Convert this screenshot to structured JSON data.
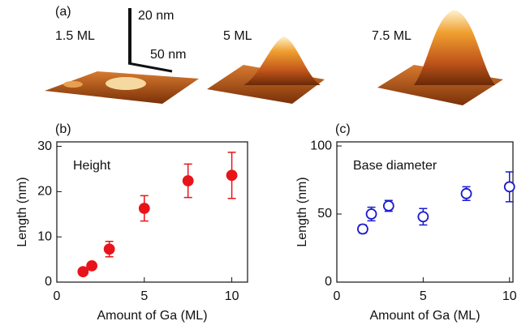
{
  "panel_a": {
    "label": "(a)",
    "scale_z": "20 nm",
    "scale_xy": "50 nm",
    "samples": [
      "1.5 ML",
      "5 ML",
      "7.5 ML"
    ]
  },
  "chart_data": [
    {
      "type": "scatter",
      "label": "(b)",
      "xlabel": "Amount of Ga (ML)",
      "ylabel": "Length (nm)",
      "xlim": [
        0,
        10.9
      ],
      "ylim": [
        0,
        31
      ],
      "xticks": [
        0,
        5,
        10
      ],
      "yticks": [
        0,
        10,
        20,
        30
      ],
      "x": [
        1.5,
        2,
        3,
        5,
        7.5,
        10
      ],
      "series": [
        {
          "name": "Height",
          "color": "#e8141a",
          "filled": true,
          "values": [
            2.3,
            3.6,
            7.3,
            16.3,
            22.4,
            23.6
          ],
          "errors": [
            0.4,
            0.6,
            1.7,
            2.8,
            3.7,
            5.1
          ]
        }
      ]
    },
    {
      "type": "scatter",
      "label": "(c)",
      "xlabel": "Amount of Ga (ML)",
      "ylabel": "Length (nm)",
      "xlim": [
        0,
        10.2
      ],
      "ylim": [
        0,
        103
      ],
      "xticks": [
        0,
        5,
        10
      ],
      "yticks": [
        0,
        50,
        100
      ],
      "x": [
        1.5,
        2,
        3,
        5,
        7.5,
        10
      ],
      "series": [
        {
          "name": "Base diameter",
          "color": "#1a1ad0",
          "filled": false,
          "values": [
            39,
            50,
            56,
            48,
            65,
            70
          ],
          "errors": [
            3,
            5,
            4,
            6,
            5,
            11
          ]
        }
      ]
    }
  ]
}
